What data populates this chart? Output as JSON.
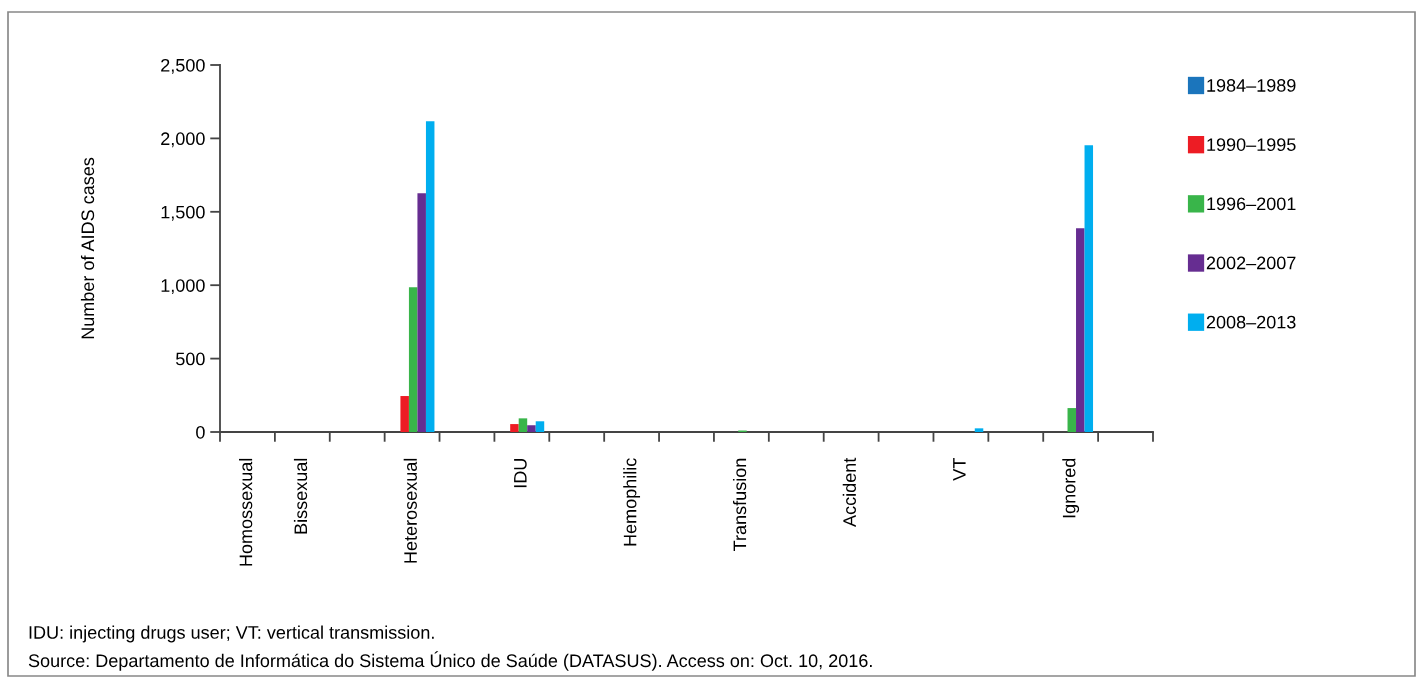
{
  "chart_data": {
    "type": "bar",
    "ylabel": "Number of AIDS cases",
    "categories": [
      "Homossexual",
      "Bissexual",
      null,
      "Heterosexual",
      null,
      "IDU",
      null,
      "Hemophilic",
      null,
      "Transfusion",
      null,
      "Accident",
      null,
      "VT",
      null,
      "Ignored",
      null
    ],
    "series": [
      {
        "name": "1984–1989",
        "color": "#1b75bc",
        "values": [
          0,
          0,
          0,
          0,
          0,
          0,
          0,
          0,
          0,
          0,
          0,
          0,
          0,
          0,
          0,
          0,
          0
        ]
      },
      {
        "name": "1990–1995",
        "color": "#ed1c24",
        "values": [
          0,
          0,
          0,
          245,
          0,
          54,
          0,
          0,
          0,
          0,
          0,
          0,
          0,
          0,
          0,
          0,
          0
        ]
      },
      {
        "name": "1996–2001",
        "color": "#39b54a",
        "values": [
          0,
          0,
          0,
          986,
          0,
          93,
          0,
          0,
          0,
          10,
          0,
          0,
          0,
          0,
          0,
          163,
          0
        ]
      },
      {
        "name": "2002–2007",
        "color": "#662d91",
        "values": [
          0,
          0,
          0,
          1626,
          0,
          46,
          0,
          0,
          0,
          0,
          0,
          0,
          0,
          0,
          0,
          1388,
          0
        ]
      },
      {
        "name": "2008–2013",
        "color": "#00aeef",
        "values": [
          0,
          0,
          0,
          2117,
          0,
          73,
          0,
          0,
          0,
          0,
          0,
          0,
          0,
          25,
          0,
          1953,
          0
        ]
      }
    ],
    "ylim": [
      0,
      2500
    ],
    "yticks": [
      {
        "value": 0,
        "label": "0"
      },
      {
        "value": 500,
        "label": "500"
      },
      {
        "value": 1000,
        "label": "1,000"
      },
      {
        "value": 1500,
        "label": "1,500"
      },
      {
        "value": 2000,
        "label": "2,000"
      },
      {
        "value": 2500,
        "label": "2,500"
      }
    ],
    "grid": false,
    "legend": "right",
    "annotations": [
      "IDU: injecting drugs user; VT: vertical transmission.",
      "Source: Departamento de Informática do Sistema Único de Saúde (DATASUS). Access on: Oct. 10, 2016."
    ]
  }
}
